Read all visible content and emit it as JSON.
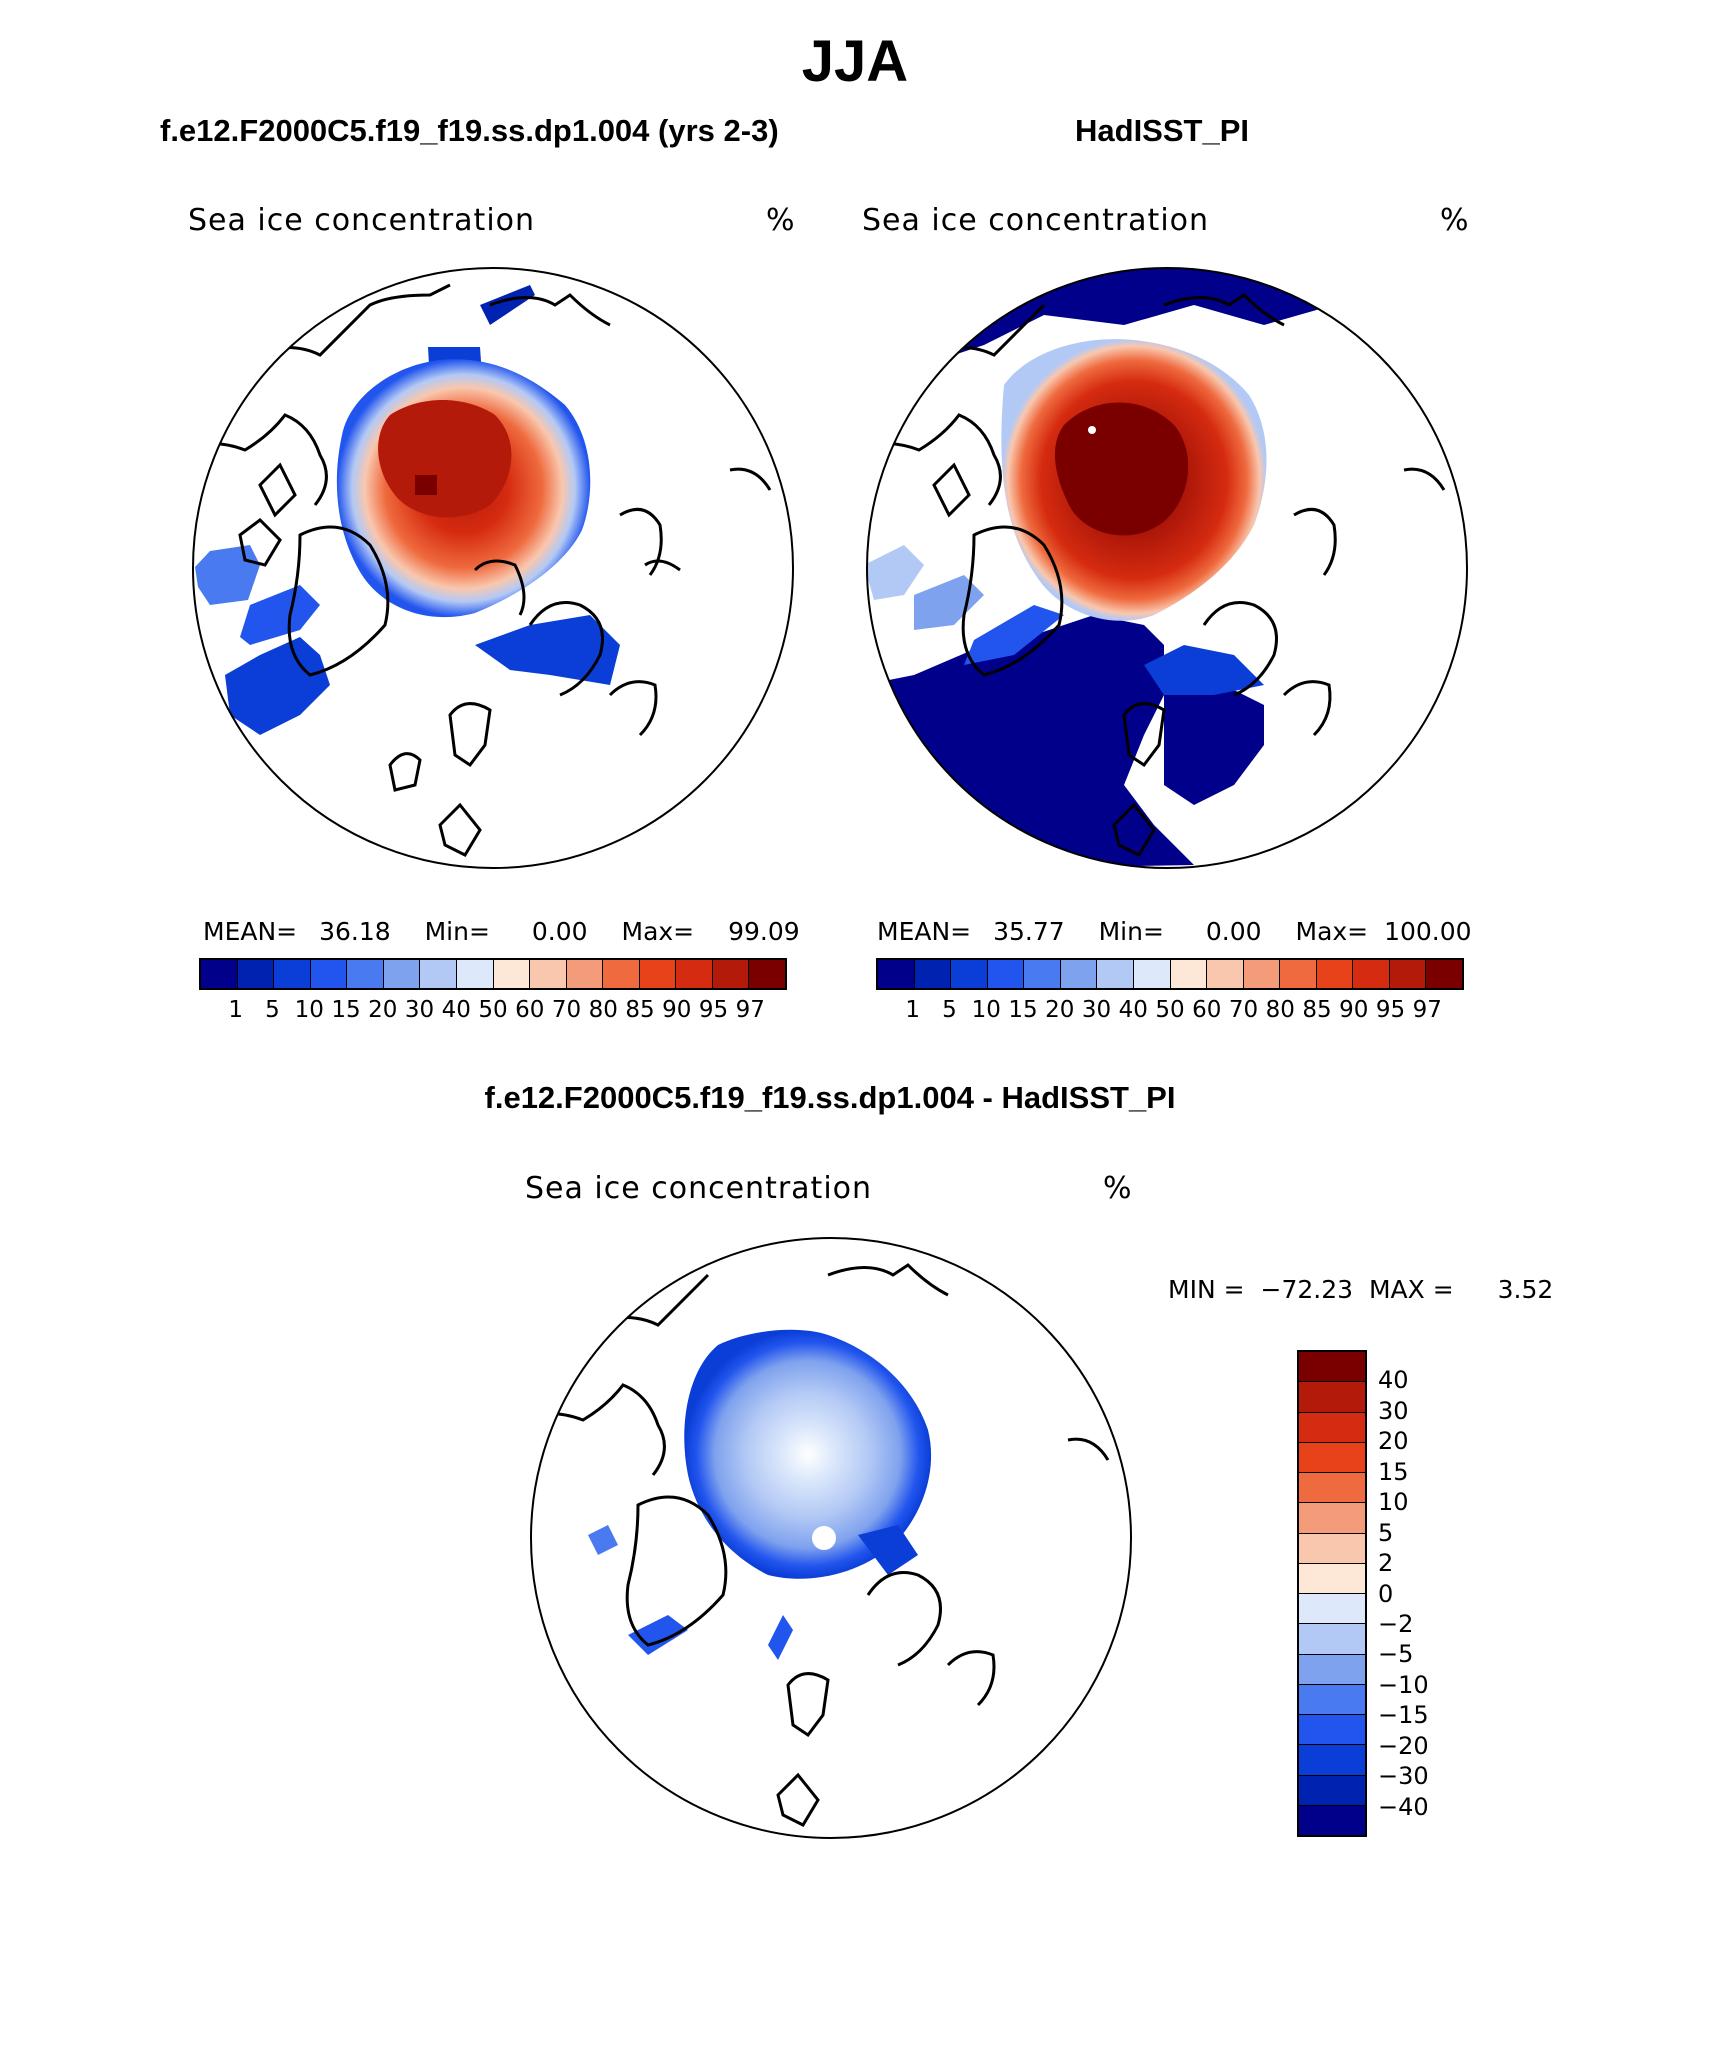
{
  "figure": {
    "season": "JJA",
    "field_label": "Sea ice concentration",
    "units": "%"
  },
  "chart_data": [
    {
      "type": "heatmap",
      "projection": "north polar stereographic",
      "title": "f.e12.F2000C5.f19_f19.ss.dp1.004 (yrs 2-3)",
      "field": "Sea ice concentration",
      "units": "%",
      "stats": {
        "mean_label": "MEAN=",
        "mean": "36.18",
        "min_label": "Min=",
        "min": "0.00",
        "max_label": "Max=",
        "max": "99.09"
      },
      "colorbar": {
        "orientation": "horizontal",
        "levels": [
          "1",
          "5",
          "10",
          "15",
          "20",
          "30",
          "40",
          "50",
          "60",
          "70",
          "80",
          "85",
          "90",
          "95",
          "97"
        ],
        "colors": [
          "#00008b",
          "#0022b0",
          "#0a3ed6",
          "#2255ee",
          "#4a7af0",
          "#7fa2ee",
          "#b3c9f5",
          "#dde9fb",
          "#fde8d8",
          "#f9c7ae",
          "#f49c7a",
          "#ef6a3e",
          "#e8421b",
          "#d52b10",
          "#b41a0a",
          "#7a0000"
        ]
      },
      "ice_region": "central Arctic, peak 95-99% north of Greenland, sharp ice edge in Fram Strait, Baffin Bay and Hudson Bay below 30%"
    },
    {
      "type": "heatmap",
      "projection": "north polar stereographic",
      "title": "HadISST_PI",
      "field": "Sea ice concentration",
      "units": "%",
      "stats": {
        "mean_label": "MEAN=",
        "mean": "35.77",
        "min_label": "Min=",
        "min": "0.00",
        "max_label": "Max=",
        "max": "100.00"
      },
      "colorbar": {
        "orientation": "horizontal",
        "levels": [
          "1",
          "5",
          "10",
          "15",
          "20",
          "30",
          "40",
          "50",
          "60",
          "70",
          "80",
          "85",
          "90",
          "95",
          "97"
        ],
        "colors": [
          "#00008b",
          "#0022b0",
          "#0a3ed6",
          "#2255ee",
          "#4a7af0",
          "#7fa2ee",
          "#b3c9f5",
          "#dde9fb",
          "#fde8d8",
          "#f9c7ae",
          "#f49c7a",
          "#ef6a3e",
          "#e8421b",
          "#d52b10",
          "#b41a0a",
          "#7a0000"
        ]
      },
      "ice_region": "central Arctic 97-100% with open ocean (0-1%) in North Atlantic and North Pacific"
    },
    {
      "type": "heatmap",
      "projection": "north polar stereographic",
      "title": "f.e12.F2000C5.f19_f19.ss.dp1.004 - HadISST_PI",
      "field": "Sea ice concentration",
      "units": "%",
      "stats": {
        "min_label": "MIN =",
        "min": "−72.23",
        "max_label": "MAX =",
        "max": "3.52"
      },
      "colorbar": {
        "orientation": "vertical",
        "levels": [
          "40",
          "30",
          "20",
          "15",
          "10",
          "5",
          "2",
          "0",
          "−2",
          "−5",
          "−10",
          "−15",
          "−20",
          "−30",
          "−40"
        ],
        "colors": [
          "#7a0000",
          "#b41a0a",
          "#d52b10",
          "#e8421b",
          "#ef6a3e",
          "#f49c7a",
          "#f9c7ae",
          "#fde8d8",
          "#dde9fb",
          "#b3c9f5",
          "#7fa2ee",
          "#4a7af0",
          "#2255ee",
          "#0a3ed6",
          "#0022b0",
          "#00008b"
        ]
      },
      "ice_region": "model deficit of -2 to -40% across central Arctic, largest near ice edges"
    }
  ]
}
